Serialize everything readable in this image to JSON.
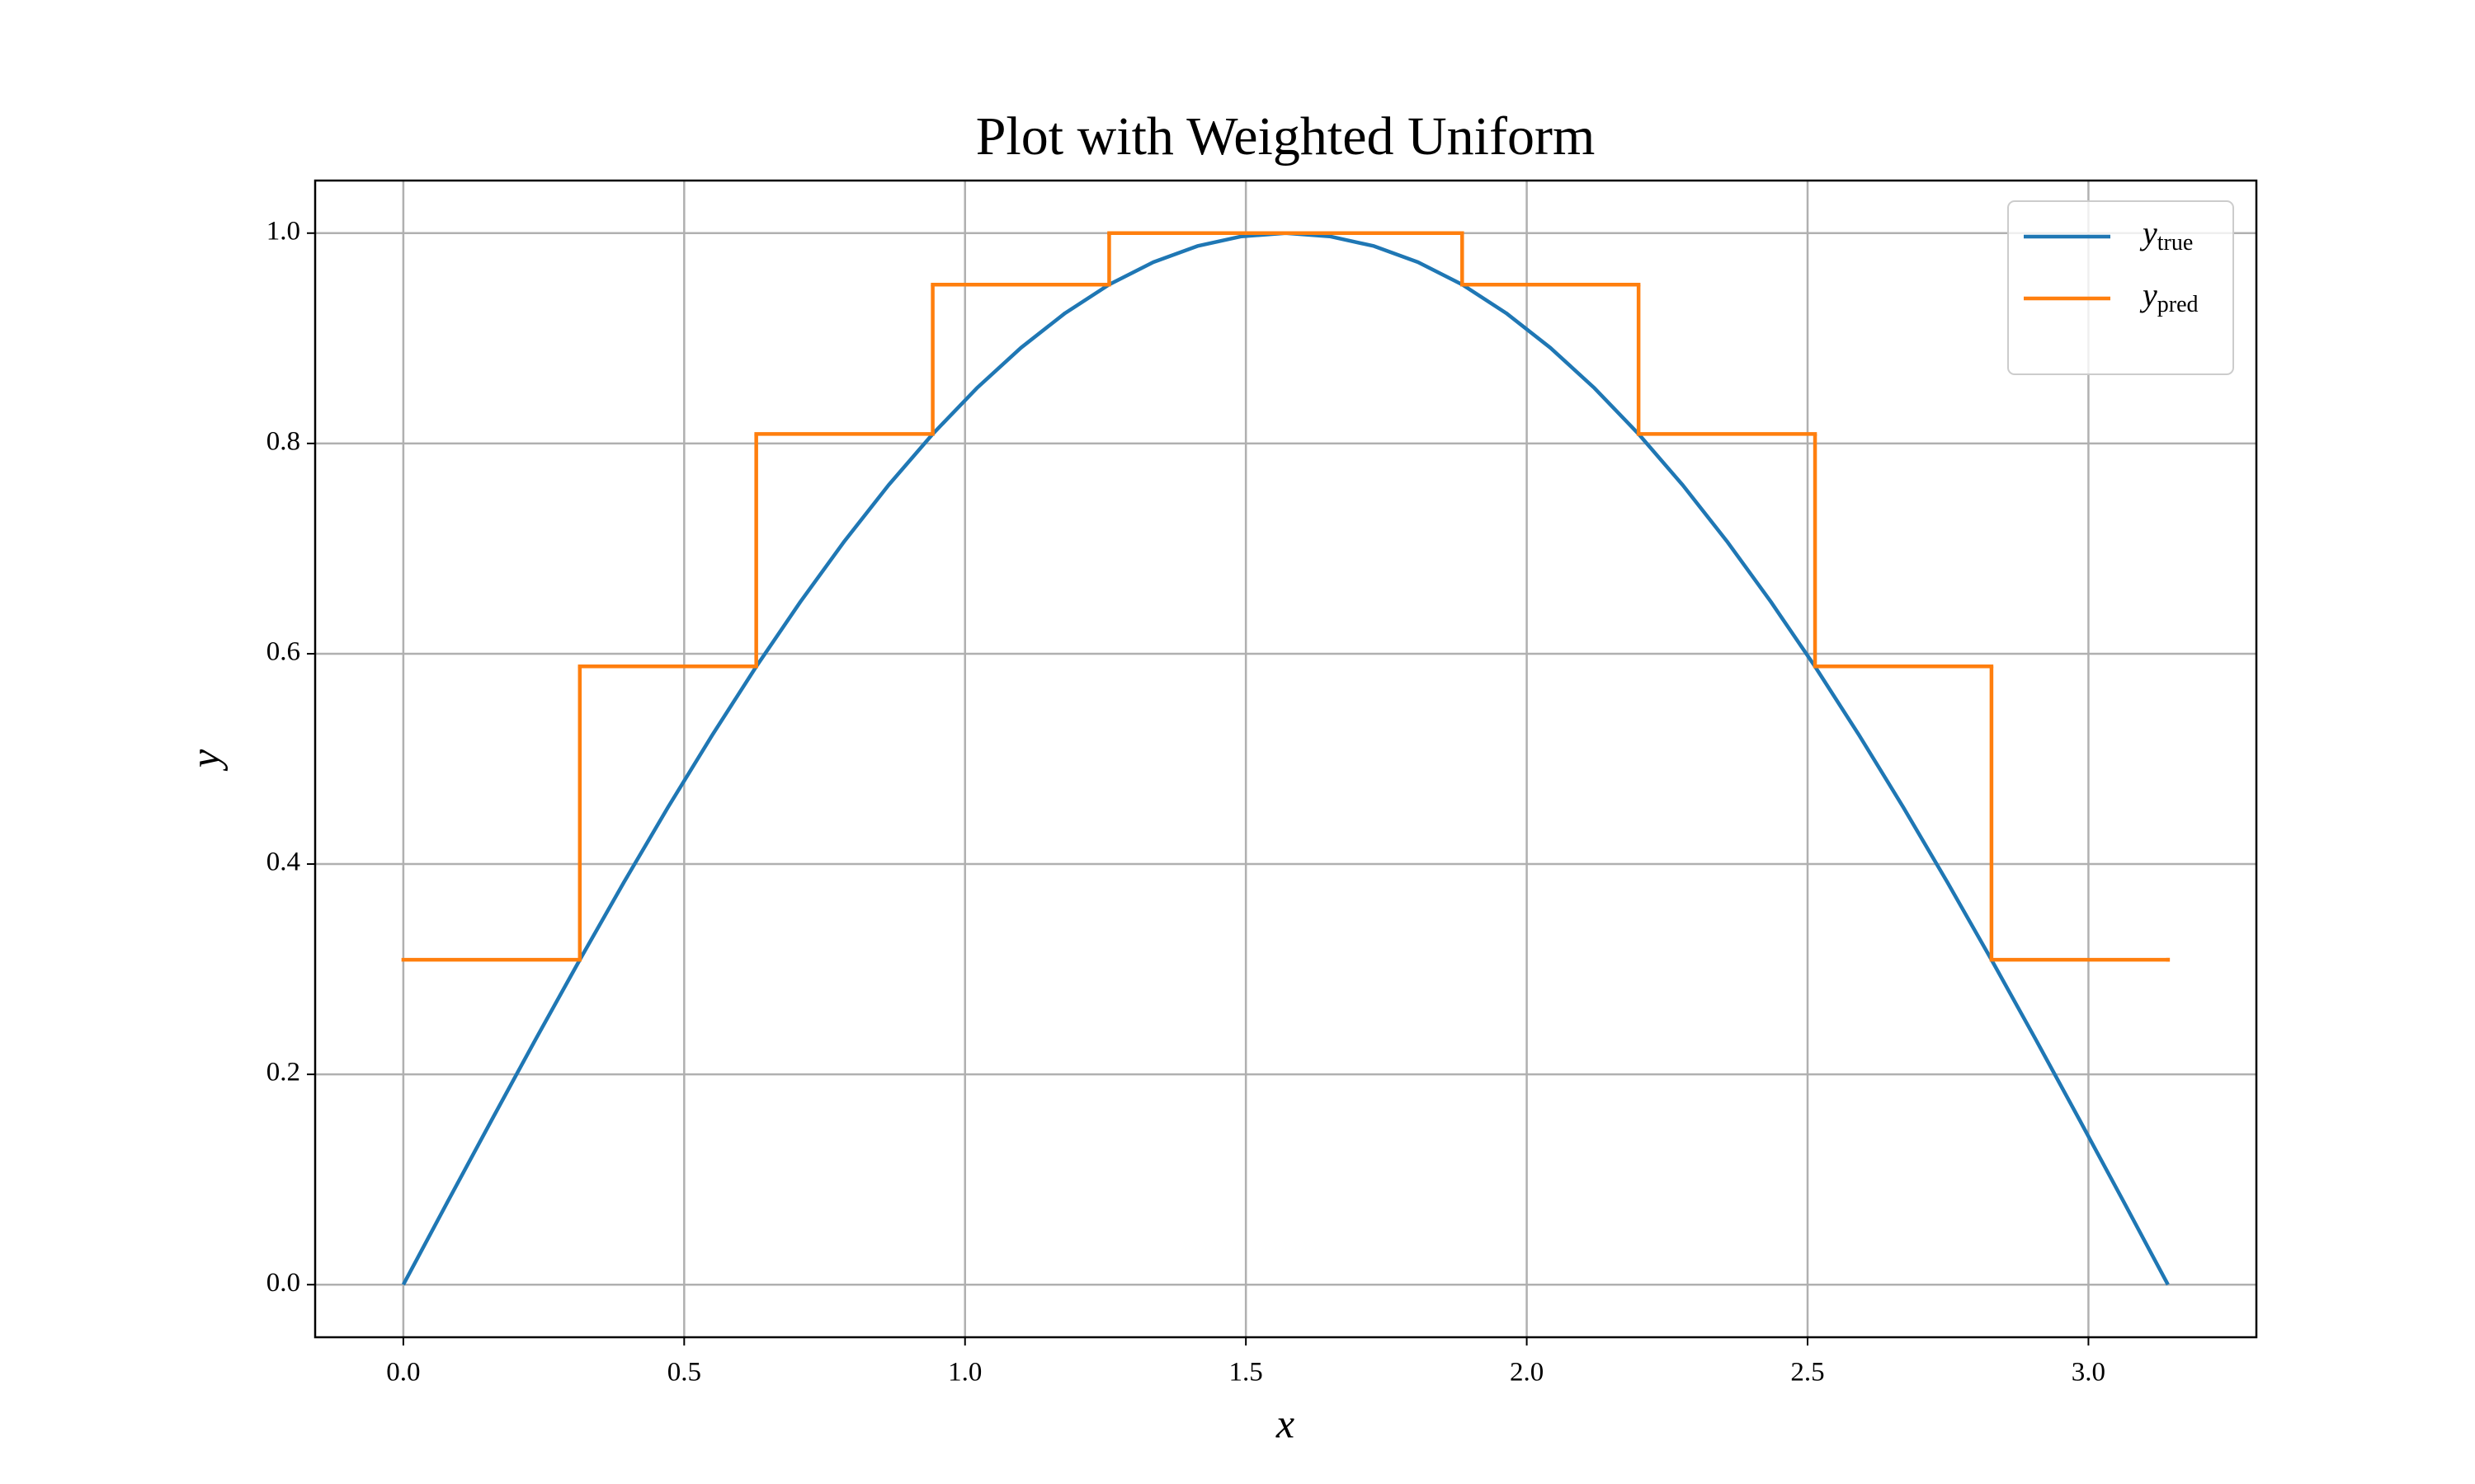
{
  "chart_data": {
    "type": "line",
    "title": "Plot with Weighted Uniform",
    "xlabel": "x",
    "ylabel": "y",
    "grid": true,
    "legend": "upper right",
    "xlim": [
      -0.157,
      3.299
    ],
    "ylim": [
      -0.05,
      1.05
    ],
    "xticks": [
      {
        "value": 0,
        "label": "0.0"
      },
      0.5,
      {
        "value": 1,
        "label": "1.0"
      },
      1.5,
      {
        "value": 2,
        "label": "2.0"
      },
      2.5,
      {
        "value": 3,
        "label": "3.0"
      }
    ],
    "yticks": [
      {
        "value": 0,
        "label": "0.0"
      },
      0.2,
      0.4,
      0.6,
      0.8,
      {
        "value": 1,
        "label": "1.0"
      }
    ],
    "series": [
      {
        "name": "y_true",
        "color": "#1f77b4",
        "drawstyle": "default",
        "x": [
          0,
          0.0785,
          0.1571,
          0.2356,
          0.3142,
          0.3927,
          0.4712,
          0.5498,
          0.6283,
          0.7069,
          0.7854,
          0.8639,
          0.9425,
          1.021,
          1.0996,
          1.1781,
          1.2566,
          1.3352,
          1.4137,
          1.4923,
          1.5708,
          1.6493,
          1.7279,
          1.8064,
          1.885,
          1.9635,
          2.042,
          2.1206,
          2.1991,
          2.2777,
          2.3562,
          2.4347,
          2.5133,
          2.5918,
          2.6704,
          2.7489,
          2.8274,
          2.906,
          2.9845,
          3.0631,
          3.1416
        ],
        "values": [
          0,
          0.0785,
          0.1564,
          0.2334,
          0.309,
          0.3827,
          0.454,
          0.5225,
          0.5878,
          0.6494,
          0.7071,
          0.7604,
          0.809,
          0.8526,
          0.891,
          0.9239,
          0.9511,
          0.9724,
          0.9877,
          0.9969,
          1,
          0.9969,
          0.9877,
          0.9724,
          0.9511,
          0.9239,
          0.891,
          0.8526,
          0.809,
          0.7604,
          0.7071,
          0.6494,
          0.5878,
          0.5225,
          0.454,
          0.3827,
          0.309,
          0.2334,
          0.1564,
          0.0785,
          0
        ]
      },
      {
        "name": "y_pred",
        "color": "#ff7f0e",
        "drawstyle": "steps-post",
        "x": [
          0,
          0.3142,
          0.6283,
          0.9425,
          1.2566,
          1.5708,
          1.885,
          2.1991,
          2.5133,
          2.8274,
          3.1416
        ],
        "values": [
          0.309,
          0.588,
          0.809,
          0.951,
          1,
          1,
          0.951,
          0.809,
          0.588,
          0.309,
          0.309
        ]
      }
    ]
  }
}
